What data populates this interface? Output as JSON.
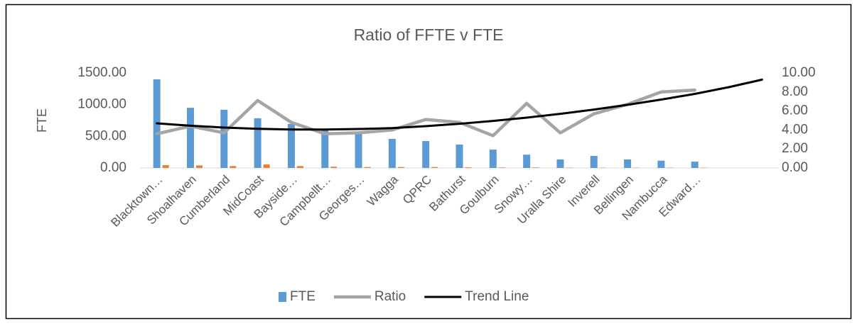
{
  "chart_data": {
    "type": "bar-line",
    "title": "Ratio of FFTE v FTE",
    "y_label": "FTE",
    "categories": [
      "Blacktown…",
      "Shoalhaven",
      "Cumberland",
      "MidCoast",
      "Bayside…",
      "Campbellt…",
      "Georges…",
      "Wagga",
      "QPRC",
      "Bathurst",
      "Goulburn",
      "Snowy…",
      "Uralla Shire",
      "Inverell",
      "Bellingen",
      "Nambucca",
      "Edward…",
      null,
      null
    ],
    "series": [
      {
        "name": "FTE",
        "type": "bar",
        "color": "#5b9bd5",
        "values": [
          1400,
          950,
          920,
          785,
          695,
          600,
          550,
          460,
          425,
          370,
          290,
          210,
          135,
          190,
          135,
          115,
          100,
          null,
          null
        ]
      },
      {
        "type": "bar",
        "color": "#ed7d31",
        "values": [
          45,
          40,
          30,
          55,
          30,
          20,
          15,
          15,
          15,
          10,
          8,
          8,
          5,
          5,
          5,
          5,
          5,
          null,
          null
        ]
      },
      {
        "name": "Ratio",
        "type": "line",
        "axis": "y2",
        "color": "#a5a5a5",
        "values": [
          3.6,
          4.4,
          3.7,
          7.1,
          4.8,
          3.6,
          3.7,
          4.0,
          5.1,
          4.8,
          3.4,
          6.8,
          3.7,
          5.7,
          6.7,
          8.0,
          8.2,
          null,
          null
        ]
      },
      {
        "name": "Trend Line",
        "type": "line",
        "axis": "y2",
        "color": "#000000",
        "values": [
          4.7,
          4.45,
          4.25,
          4.12,
          4.05,
          4.05,
          4.1,
          4.2,
          4.4,
          4.65,
          4.95,
          5.3,
          5.7,
          6.15,
          6.65,
          7.2,
          7.8,
          8.5,
          9.3
        ]
      }
    ],
    "ylim": [
      0,
      1500
    ],
    "yticks": [
      {
        "value": 0,
        "label": "0.00"
      },
      {
        "value": 500,
        "label": "500.00"
      },
      {
        "value": 1000,
        "label": "1000.00"
      },
      {
        "value": 1500,
        "label": "1500.00"
      }
    ],
    "y2lim": [
      0,
      10
    ],
    "y2ticks": [
      {
        "value": 0,
        "label": "0.00"
      },
      {
        "value": 2,
        "label": "2.00"
      },
      {
        "value": 4,
        "label": "4.00"
      },
      {
        "value": 6,
        "label": "6.00"
      },
      {
        "value": 8,
        "label": "8.00"
      },
      {
        "value": 10,
        "label": "10.00"
      }
    ],
    "grid": false,
    "legend": "bottom"
  }
}
